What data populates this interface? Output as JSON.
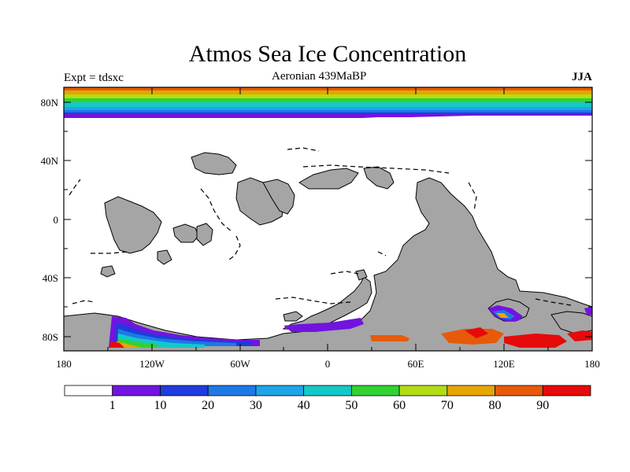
{
  "title": "Atmos Sea Ice Concentration",
  "experiment_label": "Expt = tdsxc",
  "subtitle": "Aeronian 439MaBP",
  "season": "JJA",
  "map": {
    "projection": "cylindrical-equidistant",
    "lon_range": [
      -180,
      180
    ],
    "lat_range": [
      -90,
      90
    ],
    "lon_tick_labels": [
      "180",
      "120W",
      "60W",
      "0",
      "60E",
      "120E",
      "180"
    ],
    "lat_tick_labels": [
      "80N",
      "40N",
      "0",
      "40S",
      "80S"
    ],
    "land_color": "#a5a5a5",
    "ocean_color": "#ffffff"
  },
  "colorbar": {
    "colors": [
      "#ffffff",
      "#7214e0",
      "#1e3cdc",
      "#1e78e6",
      "#1ea5e6",
      "#14c8c8",
      "#32d232",
      "#b4dc14",
      "#e6a500",
      "#e65a0a",
      "#e60a0a"
    ],
    "labels": [
      "1",
      "10",
      "20",
      "30",
      "40",
      "50",
      "60",
      "70",
      "80",
      "90"
    ]
  }
}
